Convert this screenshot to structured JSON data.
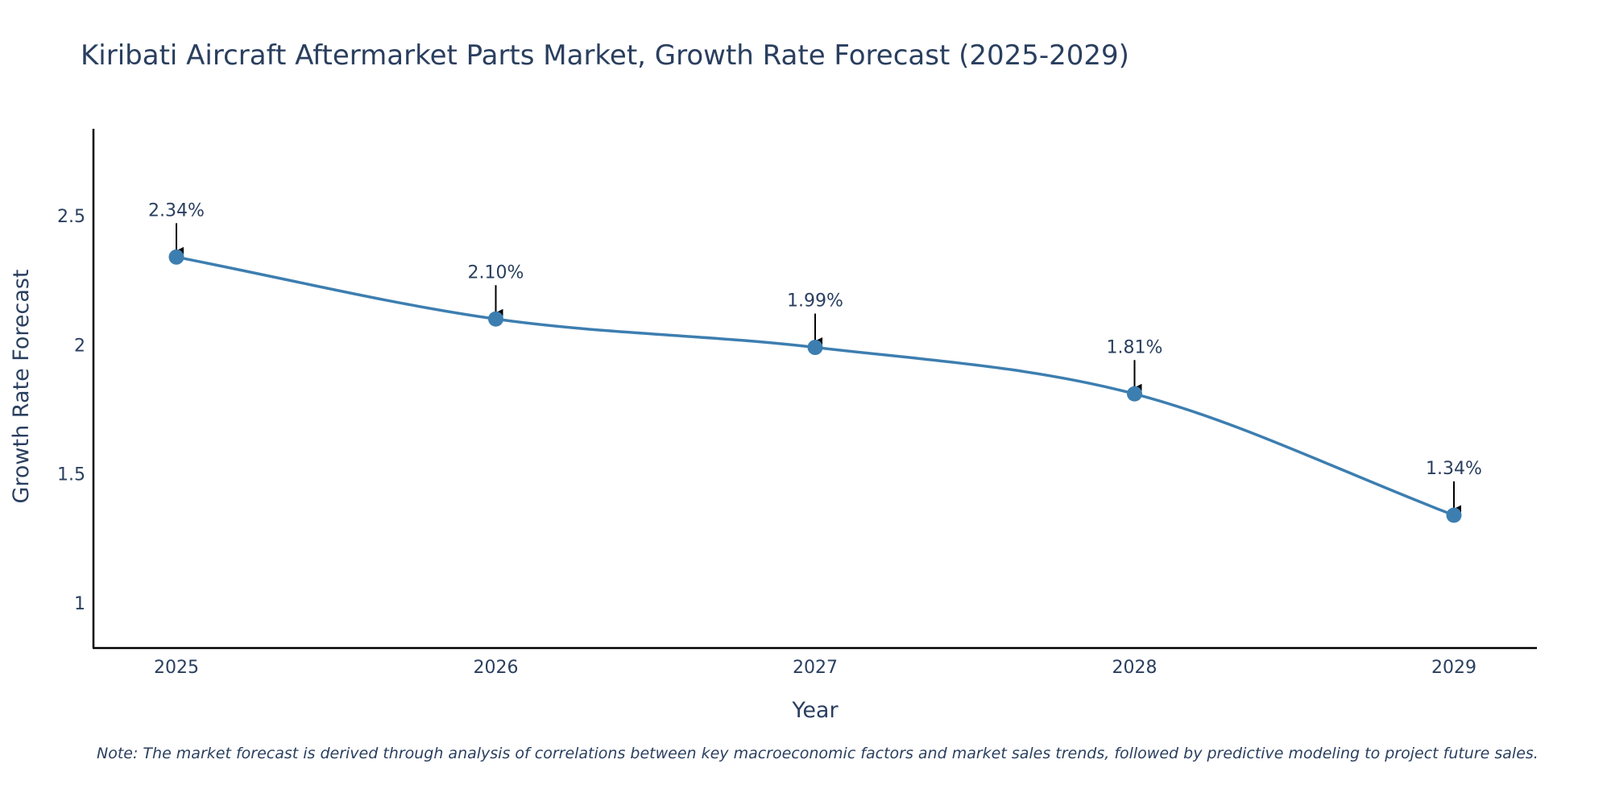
{
  "colors": {
    "series": "#3d7eb0",
    "axis": "#000000",
    "text": "#2a3f5f"
  },
  "chart_data": {
    "type": "line",
    "title": "Kiribati Aircraft Aftermarket Parts Market, Growth Rate Forecast (2025-2029)",
    "xlabel": "Year",
    "ylabel": "Growth Rate Forecast",
    "categories": [
      "2025",
      "2026",
      "2027",
      "2028",
      "2029"
    ],
    "series": [
      {
        "name": "Growth Rate Forecast",
        "values": [
          2.34,
          2.1,
          1.99,
          1.81,
          1.34
        ]
      }
    ],
    "annotations": [
      "2.34%",
      "2.10%",
      "1.99%",
      "1.81%",
      "1.34%"
    ],
    "yticks": [
      1,
      1.5,
      2,
      2.5
    ],
    "ytick_labels": [
      "1",
      "1.5",
      "2",
      "2.5"
    ],
    "ylim": [
      0.83,
      2.83
    ],
    "grid": false,
    "note": "Note: The market forecast is derived through analysis of correlations between key macroeconomic factors and market sales trends, followed by predictive modeling to project future sales."
  }
}
